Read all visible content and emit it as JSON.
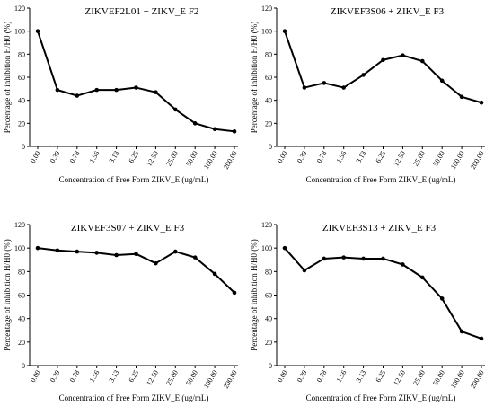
{
  "chart_data": [
    {
      "type": "line",
      "title": "ZIKVEF2L01 + ZIKV_E F2",
      "xlabel": "Concentration of Free Form ZIKV_E (ug/mL)",
      "ylabel": "Percentage of inhibition H/H0 (%)",
      "categories": [
        "0.00",
        "0.39",
        "0.78",
        "1.56",
        "3.13",
        "6.25",
        "12.50",
        "25.00",
        "50.00",
        "100.00",
        "200.00"
      ],
      "values": [
        100,
        49,
        44,
        49,
        49,
        51,
        47,
        32,
        20,
        15,
        13
      ],
      "ylim": [
        0,
        120
      ],
      "yticks": [
        0,
        20,
        40,
        60,
        80,
        100,
        120
      ]
    },
    {
      "type": "line",
      "title": "ZIKVEF3S06 + ZIKV_E F3",
      "xlabel": "Concentration of Free Form ZIKV_E (ug/mL)",
      "ylabel": "Percentage of inhibition H/H0 (%)",
      "categories": [
        "0.00",
        "0.39",
        "0.78",
        "1.56",
        "3.13",
        "6.25",
        "12.50",
        "25.00",
        "50.00",
        "100.00",
        "200.00"
      ],
      "values": [
        100,
        51,
        55,
        51,
        62,
        75,
        79,
        74,
        57,
        43,
        38
      ],
      "ylim": [
        0,
        120
      ],
      "yticks": [
        0,
        20,
        40,
        60,
        80,
        100,
        120
      ]
    },
    {
      "type": "line",
      "title": "ZIKVEF3S07 + ZIKV_E F3",
      "xlabel": "Concentration of Free Form ZIKV_E (ug/mL)",
      "ylabel": "Percentage of inhibition H/H0 (%)",
      "categories": [
        "0.00",
        "0.39",
        "0.78",
        "1.56",
        "3.13",
        "6.25",
        "12.50",
        "25.00",
        "50.00",
        "100.00",
        "200.00"
      ],
      "values": [
        100,
        98,
        97,
        96,
        94,
        95,
        87,
        97,
        92,
        78,
        62
      ],
      "ylim": [
        0,
        120
      ],
      "yticks": [
        0,
        20,
        40,
        60,
        80,
        100,
        120
      ]
    },
    {
      "type": "line",
      "title": "ZIKVEF3S13 + ZIKV_E F3",
      "xlabel": "Concentration of Free Form ZIKV_E (ug/mL)",
      "ylabel": "Percentage of inhibition H/H0 (%)",
      "categories": [
        "0.00",
        "0.39",
        "0.78",
        "1.56",
        "3.13",
        "6.25",
        "12.50",
        "25.00",
        "50.00",
        "100.00",
        "200.00"
      ],
      "values": [
        100,
        81,
        91,
        92,
        91,
        91,
        86,
        75,
        57,
        29,
        23
      ],
      "ylim": [
        0,
        120
      ],
      "yticks": [
        0,
        20,
        40,
        60,
        80,
        100,
        120
      ]
    }
  ]
}
